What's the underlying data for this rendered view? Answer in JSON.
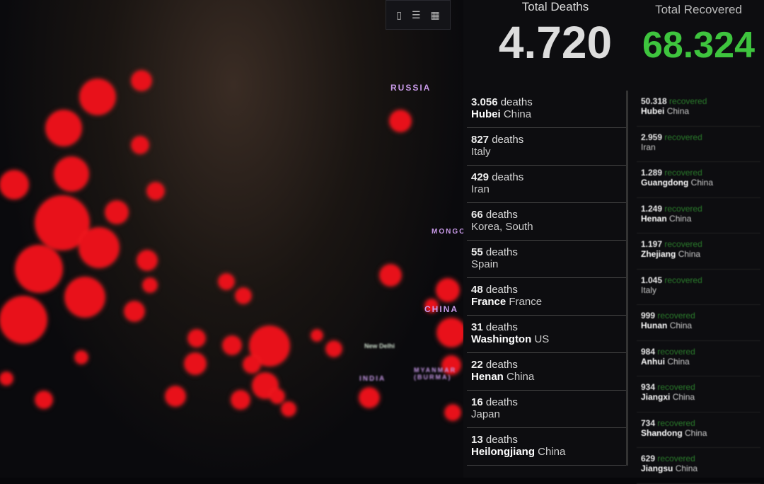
{
  "map": {
    "labels": {
      "russia": "RUSSIA",
      "china": "CHINA",
      "mongolia": "MONGO",
      "india": "INDIA",
      "new_delhi": "New Delhi",
      "myanmar": "MYANMAR (BURMA)"
    },
    "marker_color": "#e8111a"
  },
  "toolbar": {
    "icons": [
      "bookmark-icon",
      "list-icon",
      "qr-icon"
    ]
  },
  "deaths": {
    "label": "Total Deaths",
    "total": "4.720",
    "items": [
      {
        "count": "3.056",
        "unit": "deaths",
        "region": "Hubei",
        "country": "China"
      },
      {
        "count": "827",
        "unit": "deaths",
        "region": "",
        "country": "Italy"
      },
      {
        "count": "429",
        "unit": "deaths",
        "region": "",
        "country": "Iran"
      },
      {
        "count": "66",
        "unit": "deaths",
        "region": "",
        "country": "Korea, South"
      },
      {
        "count": "55",
        "unit": "deaths",
        "region": "",
        "country": "Spain"
      },
      {
        "count": "48",
        "unit": "deaths",
        "region": "France",
        "country": "France"
      },
      {
        "count": "31",
        "unit": "deaths",
        "region": "Washington",
        "country": "US"
      },
      {
        "count": "22",
        "unit": "deaths",
        "region": "Henan",
        "country": "China"
      },
      {
        "count": "16",
        "unit": "deaths",
        "region": "",
        "country": "Japan"
      },
      {
        "count": "13",
        "unit": "deaths",
        "region": "Heilongjiang",
        "country": "China"
      }
    ]
  },
  "recovered": {
    "label": "Total Recovered",
    "total": "68.324",
    "color": "#3ec43e",
    "items": [
      {
        "count": "50.318",
        "unit": "recovered",
        "region": "Hubei",
        "country": "China"
      },
      {
        "count": "2.959",
        "unit": "recovered",
        "region": "",
        "country": "Iran"
      },
      {
        "count": "1.289",
        "unit": "recovered",
        "region": "Guangdong",
        "country": "China"
      },
      {
        "count": "1.249",
        "unit": "recovered",
        "region": "Henan",
        "country": "China"
      },
      {
        "count": "1.197",
        "unit": "recovered",
        "region": "Zhejiang",
        "country": "China"
      },
      {
        "count": "1.045",
        "unit": "recovered",
        "region": "",
        "country": "Italy"
      },
      {
        "count": "999",
        "unit": "recovered",
        "region": "Hunan",
        "country": "China"
      },
      {
        "count": "984",
        "unit": "recovered",
        "region": "Anhui",
        "country": "China"
      },
      {
        "count": "934",
        "unit": "recovered",
        "region": "Jiangxi",
        "country": "China"
      },
      {
        "count": "734",
        "unit": "recovered",
        "region": "Shandong",
        "country": "China"
      },
      {
        "count": "629",
        "unit": "recovered",
        "region": "Jiangsu",
        "country": "China"
      }
    ]
  }
}
